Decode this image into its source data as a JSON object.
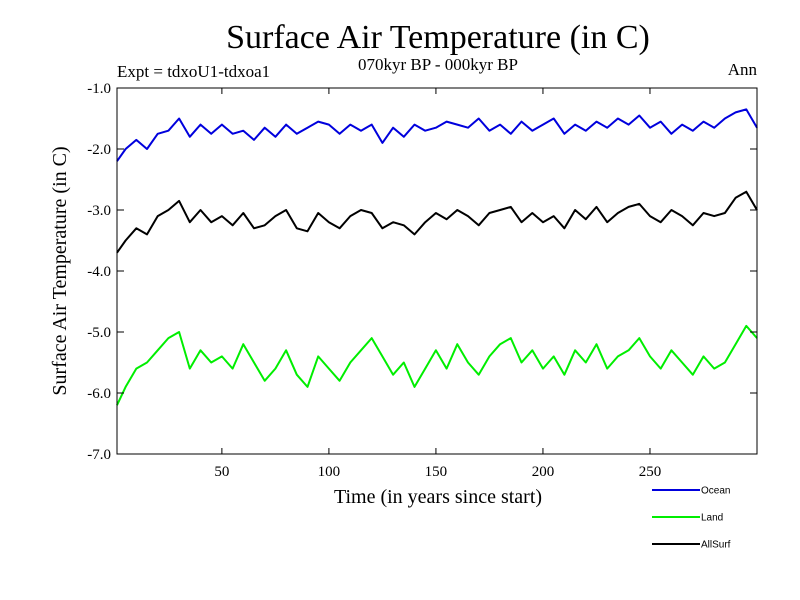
{
  "chart_data": {
    "type": "line",
    "title": "Surface Air Temperature (in C)",
    "subtitle_left": "Expt = tdxoU1-tdxoa1",
    "subtitle_center": "070kyr BP - 000kyr BP",
    "subtitle_right": "Ann",
    "xlabel": "Time (in years since start)",
    "ylabel": "Surface Air Temperature (in C)",
    "xlim": [
      1,
      300
    ],
    "ylim": [
      -7.0,
      -1.0
    ],
    "xticks": [
      50,
      100,
      150,
      200,
      250
    ],
    "xtick_labels": [
      "50",
      "100",
      "150",
      "200",
      "250"
    ],
    "yticks": [
      -1.0,
      -2.0,
      -3.0,
      -4.0,
      -5.0,
      -6.0,
      -7.0
    ],
    "ytick_labels": [
      "-1.0",
      "-2.0",
      "-3.0",
      "-4.0",
      "-5.0",
      "-6.0",
      "-7.0"
    ],
    "legend_position": "bottom-right",
    "series": [
      {
        "name": "Ocean",
        "color": "#0000dd",
        "x": [
          1,
          5,
          10,
          15,
          20,
          25,
          30,
          35,
          40,
          45,
          50,
          55,
          60,
          65,
          70,
          75,
          80,
          85,
          90,
          95,
          100,
          105,
          110,
          115,
          120,
          125,
          130,
          135,
          140,
          145,
          150,
          155,
          160,
          165,
          170,
          175,
          180,
          185,
          190,
          195,
          200,
          205,
          210,
          215,
          220,
          225,
          230,
          235,
          240,
          245,
          250,
          255,
          260,
          265,
          270,
          275,
          280,
          285,
          290,
          295,
          300
        ],
        "values": [
          -2.2,
          -2.0,
          -1.85,
          -2.0,
          -1.75,
          -1.7,
          -1.5,
          -1.8,
          -1.6,
          -1.75,
          -1.6,
          -1.75,
          -1.7,
          -1.85,
          -1.65,
          -1.8,
          -1.6,
          -1.75,
          -1.65,
          -1.55,
          -1.6,
          -1.75,
          -1.6,
          -1.7,
          -1.6,
          -1.9,
          -1.65,
          -1.8,
          -1.6,
          -1.7,
          -1.65,
          -1.55,
          -1.6,
          -1.65,
          -1.5,
          -1.7,
          -1.6,
          -1.75,
          -1.55,
          -1.7,
          -1.6,
          -1.5,
          -1.75,
          -1.6,
          -1.7,
          -1.55,
          -1.65,
          -1.5,
          -1.6,
          -1.45,
          -1.65,
          -1.55,
          -1.75,
          -1.6,
          -1.7,
          -1.55,
          -1.65,
          -1.5,
          -1.4,
          -1.35,
          -1.65
        ]
      },
      {
        "name": "Land",
        "color": "#00ee00",
        "x": [
          1,
          5,
          10,
          15,
          20,
          25,
          30,
          35,
          40,
          45,
          50,
          55,
          60,
          65,
          70,
          75,
          80,
          85,
          90,
          95,
          100,
          105,
          110,
          115,
          120,
          125,
          130,
          135,
          140,
          145,
          150,
          155,
          160,
          165,
          170,
          175,
          180,
          185,
          190,
          195,
          200,
          205,
          210,
          215,
          220,
          225,
          230,
          235,
          240,
          245,
          250,
          255,
          260,
          265,
          270,
          275,
          280,
          285,
          290,
          295,
          300
        ],
        "values": [
          -6.2,
          -5.9,
          -5.6,
          -5.5,
          -5.3,
          -5.1,
          -5.0,
          -5.6,
          -5.3,
          -5.5,
          -5.4,
          -5.6,
          -5.2,
          -5.5,
          -5.8,
          -5.6,
          -5.3,
          -5.7,
          -5.9,
          -5.4,
          -5.6,
          -5.8,
          -5.5,
          -5.3,
          -5.1,
          -5.4,
          -5.7,
          -5.5,
          -5.9,
          -5.6,
          -5.3,
          -5.6,
          -5.2,
          -5.5,
          -5.7,
          -5.4,
          -5.2,
          -5.1,
          -5.5,
          -5.3,
          -5.6,
          -5.4,
          -5.7,
          -5.3,
          -5.5,
          -5.2,
          -5.6,
          -5.4,
          -5.3,
          -5.1,
          -5.4,
          -5.6,
          -5.3,
          -5.5,
          -5.7,
          -5.4,
          -5.6,
          -5.5,
          -5.2,
          -4.9,
          -5.1
        ]
      },
      {
        "name": "AllSurf",
        "color": "#000000",
        "x": [
          1,
          5,
          10,
          15,
          20,
          25,
          30,
          35,
          40,
          45,
          50,
          55,
          60,
          65,
          70,
          75,
          80,
          85,
          90,
          95,
          100,
          105,
          110,
          115,
          120,
          125,
          130,
          135,
          140,
          145,
          150,
          155,
          160,
          165,
          170,
          175,
          180,
          185,
          190,
          195,
          200,
          205,
          210,
          215,
          220,
          225,
          230,
          235,
          240,
          245,
          250,
          255,
          260,
          265,
          270,
          275,
          280,
          285,
          290,
          295,
          300
        ],
        "values": [
          -3.7,
          -3.5,
          -3.3,
          -3.4,
          -3.1,
          -3.0,
          -2.85,
          -3.2,
          -3.0,
          -3.2,
          -3.1,
          -3.25,
          -3.05,
          -3.3,
          -3.25,
          -3.1,
          -3.0,
          -3.3,
          -3.35,
          -3.05,
          -3.2,
          -3.3,
          -3.1,
          -3.0,
          -3.05,
          -3.3,
          -3.2,
          -3.25,
          -3.4,
          -3.2,
          -3.05,
          -3.15,
          -3.0,
          -3.1,
          -3.25,
          -3.05,
          -3.0,
          -2.95,
          -3.2,
          -3.05,
          -3.2,
          -3.1,
          -3.3,
          -3.0,
          -3.15,
          -2.95,
          -3.2,
          -3.05,
          -2.95,
          -2.9,
          -3.1,
          -3.2,
          -3.0,
          -3.1,
          -3.25,
          -3.05,
          -3.1,
          -3.05,
          -2.8,
          -2.7,
          -3.0
        ]
      }
    ]
  }
}
